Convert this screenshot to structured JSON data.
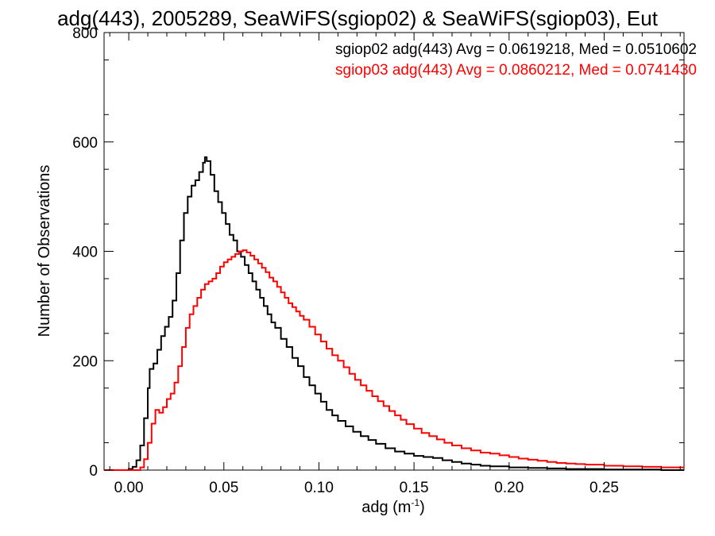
{
  "chart_data": {
    "type": "line",
    "title": "adg(443), 2005289, SeaWiFS(sgiop02) & SeaWiFS(sgiop03), Eut",
    "xlabel": "adg (m",
    "xlabel_sup": "-1",
    "xlabel_close": ")",
    "ylabel": "Number of Observations",
    "xlim": [
      -0.013,
      0.292
    ],
    "ylim": [
      0,
      800
    ],
    "xticks": [
      0.0,
      0.05,
      0.1,
      0.15,
      0.2,
      0.25
    ],
    "xtick_labels": [
      "0.00",
      "0.05",
      "0.10",
      "0.15",
      "0.20",
      "0.25"
    ],
    "yticks": [
      0,
      200,
      400,
      600,
      800
    ],
    "ytick_labels": [
      "0",
      "200",
      "400",
      "600",
      "800"
    ],
    "grid": false,
    "legend_position": "top-right",
    "colors": {
      "sgiop02": "#000000",
      "sgiop03": "#ff0000",
      "axes": "#000000"
    },
    "series": [
      {
        "legend": "sgiop02 adg(443) Avg = 0.0619218, Med = 0.0510602",
        "color": "#000000",
        "points": [
          [
            -0.013,
            0
          ],
          [
            -0.002,
            0
          ],
          [
            0.0,
            2
          ],
          [
            0.002,
            6
          ],
          [
            0.004,
            18
          ],
          [
            0.006,
            45
          ],
          [
            0.008,
            95
          ],
          [
            0.01,
            150
          ],
          [
            0.011,
            185
          ],
          [
            0.013,
            195
          ],
          [
            0.015,
            220
          ],
          [
            0.017,
            245
          ],
          [
            0.019,
            262
          ],
          [
            0.021,
            280
          ],
          [
            0.023,
            310
          ],
          [
            0.025,
            360
          ],
          [
            0.027,
            420
          ],
          [
            0.029,
            470
          ],
          [
            0.031,
            500
          ],
          [
            0.033,
            520
          ],
          [
            0.035,
            530
          ],
          [
            0.037,
            545
          ],
          [
            0.039,
            562
          ],
          [
            0.04,
            572
          ],
          [
            0.041,
            565
          ],
          [
            0.043,
            540
          ],
          [
            0.045,
            510
          ],
          [
            0.047,
            490
          ],
          [
            0.049,
            470
          ],
          [
            0.051,
            450
          ],
          [
            0.053,
            430
          ],
          [
            0.055,
            420
          ],
          [
            0.057,
            400
          ],
          [
            0.059,
            390
          ],
          [
            0.061,
            375
          ],
          [
            0.063,
            360
          ],
          [
            0.065,
            345
          ],
          [
            0.067,
            330
          ],
          [
            0.069,
            315
          ],
          [
            0.071,
            300
          ],
          [
            0.073,
            285
          ],
          [
            0.075,
            270
          ],
          [
            0.077,
            260
          ],
          [
            0.08,
            240
          ],
          [
            0.083,
            225
          ],
          [
            0.086,
            205
          ],
          [
            0.089,
            190
          ],
          [
            0.092,
            170
          ],
          [
            0.095,
            155
          ],
          [
            0.098,
            140
          ],
          [
            0.101,
            125
          ],
          [
            0.104,
            110
          ],
          [
            0.107,
            100
          ],
          [
            0.11,
            90
          ],
          [
            0.114,
            80
          ],
          [
            0.118,
            70
          ],
          [
            0.122,
            62
          ],
          [
            0.126,
            55
          ],
          [
            0.13,
            48
          ],
          [
            0.135,
            40
          ],
          [
            0.14,
            34
          ],
          [
            0.145,
            30
          ],
          [
            0.15,
            26
          ],
          [
            0.155,
            24
          ],
          [
            0.16,
            22
          ],
          [
            0.165,
            18
          ],
          [
            0.17,
            15
          ],
          [
            0.175,
            12
          ],
          [
            0.18,
            10
          ],
          [
            0.185,
            8
          ],
          [
            0.19,
            7
          ],
          [
            0.2,
            5
          ],
          [
            0.21,
            4
          ],
          [
            0.22,
            3
          ],
          [
            0.23,
            2
          ],
          [
            0.24,
            2
          ],
          [
            0.25,
            1
          ],
          [
            0.26,
            1
          ],
          [
            0.28,
            0
          ],
          [
            0.292,
            0
          ]
        ]
      },
      {
        "legend": "sgiop03 adg(443) Avg = 0.0860212, Med = 0.0741430",
        "color": "#ff0000",
        "points": [
          [
            -0.013,
            0
          ],
          [
            0.004,
            0
          ],
          [
            0.006,
            5
          ],
          [
            0.008,
            20
          ],
          [
            0.01,
            50
          ],
          [
            0.012,
            85
          ],
          [
            0.014,
            110
          ],
          [
            0.016,
            105
          ],
          [
            0.018,
            115
          ],
          [
            0.02,
            130
          ],
          [
            0.022,
            140
          ],
          [
            0.024,
            160
          ],
          [
            0.026,
            190
          ],
          [
            0.028,
            225
          ],
          [
            0.03,
            260
          ],
          [
            0.032,
            285
          ],
          [
            0.034,
            300
          ],
          [
            0.036,
            315
          ],
          [
            0.038,
            330
          ],
          [
            0.04,
            340
          ],
          [
            0.042,
            345
          ],
          [
            0.044,
            350
          ],
          [
            0.046,
            360
          ],
          [
            0.048,
            372
          ],
          [
            0.05,
            380
          ],
          [
            0.052,
            385
          ],
          [
            0.054,
            390
          ],
          [
            0.056,
            395
          ],
          [
            0.058,
            400
          ],
          [
            0.06,
            402
          ],
          [
            0.062,
            398
          ],
          [
            0.064,
            392
          ],
          [
            0.066,
            385
          ],
          [
            0.068,
            378
          ],
          [
            0.07,
            370
          ],
          [
            0.072,
            362
          ],
          [
            0.074,
            352
          ],
          [
            0.076,
            345
          ],
          [
            0.078,
            335
          ],
          [
            0.08,
            325
          ],
          [
            0.082,
            315
          ],
          [
            0.084,
            305
          ],
          [
            0.086,
            298
          ],
          [
            0.088,
            290
          ],
          [
            0.09,
            282
          ],
          [
            0.092,
            275
          ],
          [
            0.095,
            262
          ],
          [
            0.098,
            248
          ],
          [
            0.101,
            235
          ],
          [
            0.104,
            222
          ],
          [
            0.107,
            210
          ],
          [
            0.11,
            200
          ],
          [
            0.113,
            188
          ],
          [
            0.116,
            176
          ],
          [
            0.119,
            165
          ],
          [
            0.122,
            155
          ],
          [
            0.125,
            145
          ],
          [
            0.128,
            135
          ],
          [
            0.131,
            126
          ],
          [
            0.134,
            117
          ],
          [
            0.137,
            108
          ],
          [
            0.14,
            100
          ],
          [
            0.143,
            92
          ],
          [
            0.146,
            84
          ],
          [
            0.15,
            76
          ],
          [
            0.154,
            68
          ],
          [
            0.158,
            62
          ],
          [
            0.162,
            56
          ],
          [
            0.166,
            50
          ],
          [
            0.17,
            45
          ],
          [
            0.175,
            40
          ],
          [
            0.18,
            36
          ],
          [
            0.185,
            32
          ],
          [
            0.19,
            30
          ],
          [
            0.195,
            27
          ],
          [
            0.2,
            24
          ],
          [
            0.205,
            21
          ],
          [
            0.21,
            19
          ],
          [
            0.215,
            17
          ],
          [
            0.22,
            15
          ],
          [
            0.225,
            13
          ],
          [
            0.23,
            12
          ],
          [
            0.235,
            11
          ],
          [
            0.24,
            10
          ],
          [
            0.25,
            8
          ],
          [
            0.26,
            7
          ],
          [
            0.27,
            6
          ],
          [
            0.28,
            5
          ],
          [
            0.292,
            5
          ]
        ]
      }
    ]
  }
}
